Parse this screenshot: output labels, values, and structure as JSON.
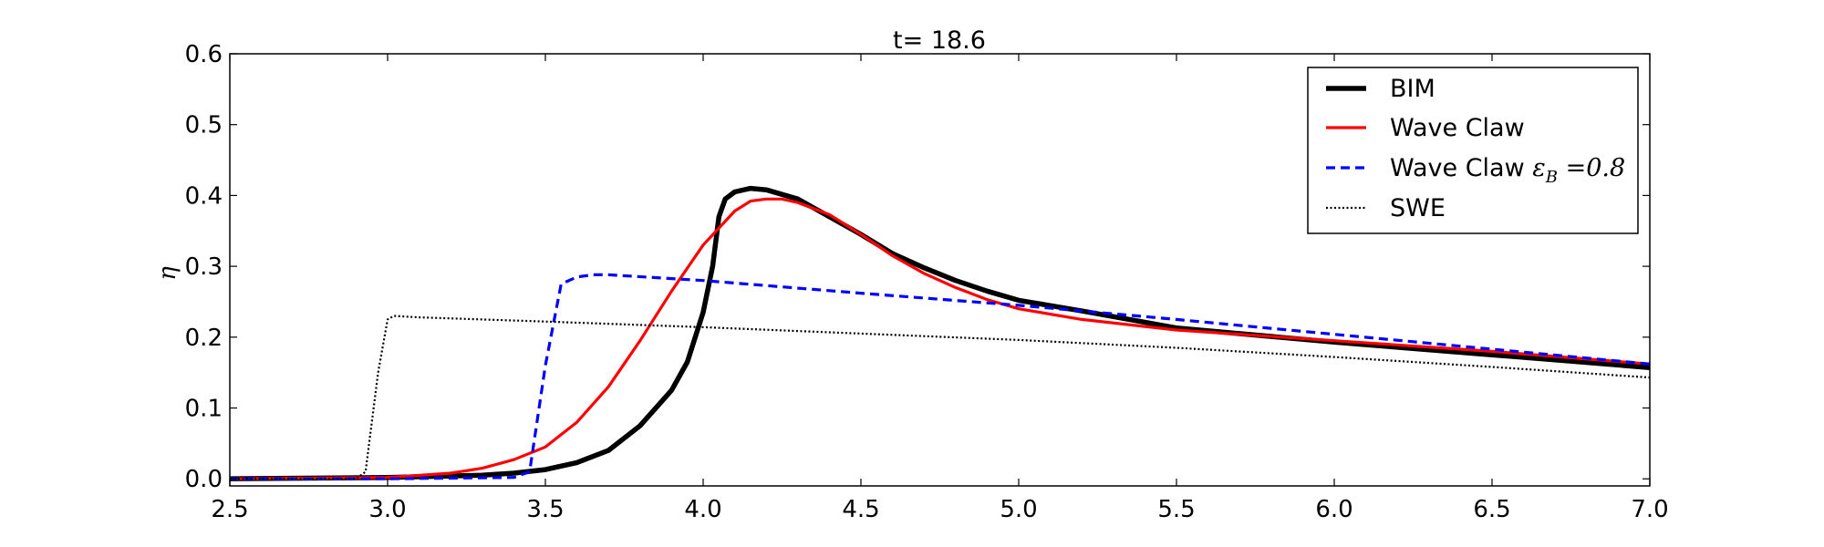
{
  "chart_data": {
    "type": "line",
    "title": "t= 18.6",
    "xlabel": "",
    "ylabel": "η",
    "xlim": [
      2.5,
      7.0
    ],
    "ylim": [
      -0.01,
      0.6
    ],
    "xticks": [
      "2.5",
      "3.0",
      "3.5",
      "4.0",
      "4.5",
      "5.0",
      "5.5",
      "6.0",
      "6.5",
      "7.0"
    ],
    "yticks": [
      "0.0",
      "0.1",
      "0.2",
      "0.3",
      "0.4",
      "0.5",
      "0.6"
    ],
    "grid": false,
    "legend_position": "top-right",
    "series": [
      {
        "name": "BIM",
        "color": "#000000",
        "style": "solid",
        "x": [
          2.5,
          3.0,
          3.3,
          3.4,
          3.5,
          3.6,
          3.7,
          3.8,
          3.9,
          3.95,
          4.0,
          4.03,
          4.05,
          4.07,
          4.1,
          4.15,
          4.2,
          4.3,
          4.4,
          4.5,
          4.6,
          4.7,
          4.8,
          4.9,
          5.0,
          5.2,
          5.5,
          6.0,
          6.5,
          7.0
        ],
        "y": [
          0.0,
          0.002,
          0.005,
          0.008,
          0.013,
          0.023,
          0.04,
          0.075,
          0.125,
          0.165,
          0.235,
          0.3,
          0.37,
          0.395,
          0.405,
          0.41,
          0.408,
          0.395,
          0.37,
          0.345,
          0.318,
          0.298,
          0.28,
          0.265,
          0.252,
          0.237,
          0.213,
          0.193,
          0.175,
          0.157
        ]
      },
      {
        "name": "Wave Claw",
        "color": "#ff0000",
        "style": "solid",
        "x": [
          2.5,
          3.0,
          3.2,
          3.3,
          3.4,
          3.5,
          3.6,
          3.7,
          3.8,
          3.9,
          4.0,
          4.1,
          4.15,
          4.2,
          4.25,
          4.3,
          4.4,
          4.5,
          4.6,
          4.7,
          4.8,
          4.9,
          5.0,
          5.2,
          5.5,
          6.0,
          6.5,
          7.0
        ],
        "y": [
          0.0,
          0.002,
          0.008,
          0.015,
          0.027,
          0.045,
          0.08,
          0.13,
          0.195,
          0.265,
          0.33,
          0.378,
          0.392,
          0.395,
          0.395,
          0.39,
          0.373,
          0.345,
          0.315,
          0.29,
          0.27,
          0.253,
          0.24,
          0.225,
          0.21,
          0.195,
          0.18,
          0.162
        ]
      },
      {
        "name": "Wave Claw ε_B = 0.8",
        "color": "#0000ff",
        "style": "dashed",
        "x": [
          2.5,
          3.0,
          3.4,
          3.45,
          3.5,
          3.55,
          3.6,
          3.65,
          3.7,
          4.0,
          4.5,
          5.0,
          5.5,
          6.0,
          6.5,
          7.0
        ],
        "y": [
          0.0,
          0.0,
          0.002,
          0.01,
          0.16,
          0.275,
          0.285,
          0.288,
          0.288,
          0.28,
          0.262,
          0.245,
          0.225,
          0.204,
          0.183,
          0.162
        ]
      },
      {
        "name": "SWE",
        "color": "#000000",
        "style": "dotted",
        "x": [
          2.5,
          2.9,
          2.93,
          2.97,
          3.0,
          3.02,
          3.1,
          3.5,
          4.0,
          4.5,
          5.0,
          5.5,
          6.0,
          6.5,
          7.0
        ],
        "y": [
          0.0,
          0.0,
          0.01,
          0.15,
          0.225,
          0.23,
          0.228,
          0.222,
          0.214,
          0.205,
          0.196,
          0.185,
          0.172,
          0.158,
          0.143
        ]
      }
    ]
  }
}
